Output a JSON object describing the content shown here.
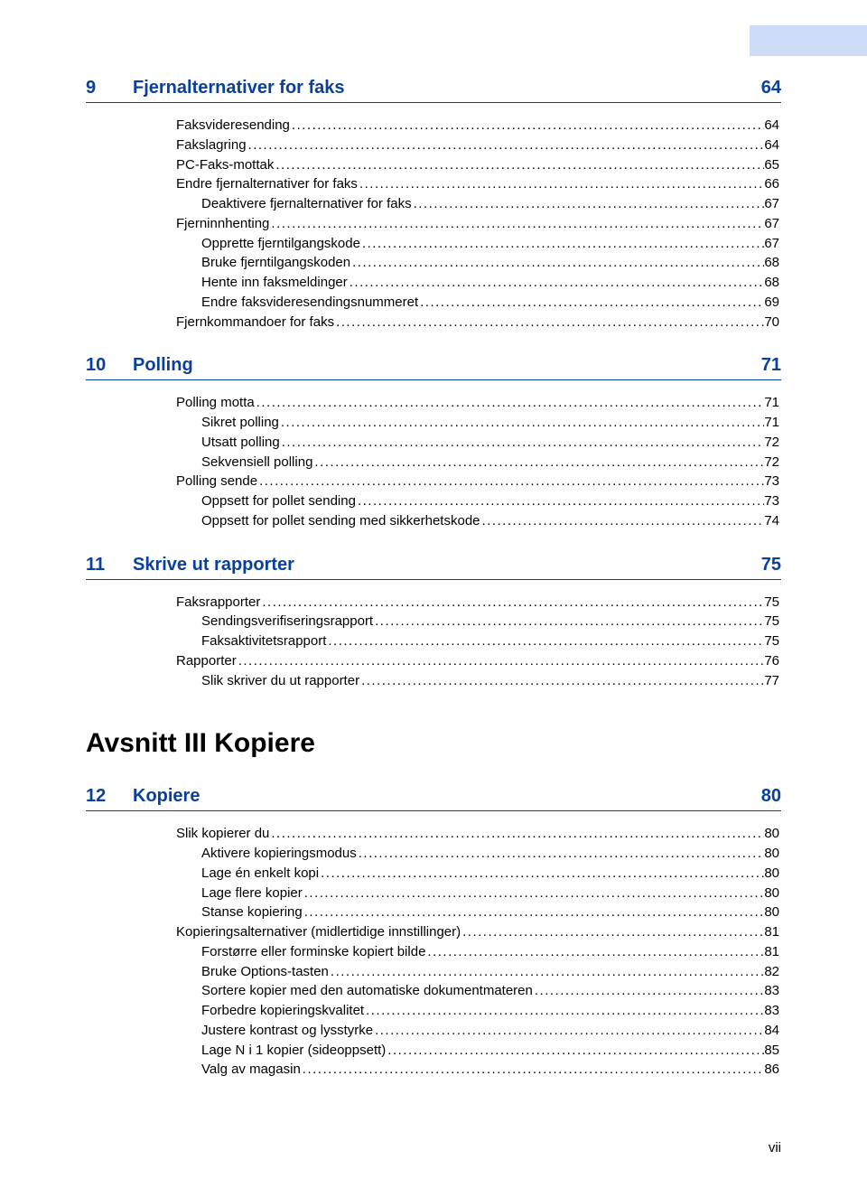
{
  "colors": {
    "heading": "#0a3f9b",
    "band": "#cfdcf7",
    "text": "#000000",
    "background": "#ffffff"
  },
  "sections": [
    {
      "num": "9",
      "title": "Fjernalternativer for faks",
      "page": "64",
      "entries": [
        {
          "label": "Faksvideresending",
          "page": "64",
          "indent": 0
        },
        {
          "label": "Fakslagring",
          "page": "64",
          "indent": 0
        },
        {
          "label": "PC-Faks-mottak",
          "page": "65",
          "indent": 0
        },
        {
          "label": "Endre fjernalternativer for faks",
          "page": "66",
          "indent": 0
        },
        {
          "label": "Deaktivere fjernalternativer for faks",
          "page": "67",
          "indent": 1
        },
        {
          "label": "Fjerninnhenting",
          "page": "67",
          "indent": 0
        },
        {
          "label": "Opprette fjerntilgangskode",
          "page": "67",
          "indent": 1
        },
        {
          "label": "Bruke fjerntilgangskoden",
          "page": "68",
          "indent": 1
        },
        {
          "label": "Hente inn faksmeldinger",
          "page": "68",
          "indent": 1
        },
        {
          "label": "Endre faksvideresendingsnummeret",
          "page": "69",
          "indent": 1
        },
        {
          "label": "Fjernkommandoer for faks",
          "page": "70",
          "indent": 0
        }
      ]
    },
    {
      "num": "10",
      "title": "Polling",
      "page": "71",
      "entries": [
        {
          "label": "Polling motta",
          "page": "71",
          "indent": 0
        },
        {
          "label": "Sikret polling",
          "page": "71",
          "indent": 1
        },
        {
          "label": "Utsatt polling",
          "page": "72",
          "indent": 1
        },
        {
          "label": "Sekvensiell polling",
          "page": "72",
          "indent": 1
        },
        {
          "label": "Polling sende",
          "page": "73",
          "indent": 0
        },
        {
          "label": "Oppsett for pollet sending",
          "page": "73",
          "indent": 1
        },
        {
          "label": "Oppsett for pollet sending med sikkerhetskode",
          "page": "74",
          "indent": 1
        }
      ]
    },
    {
      "num": "11",
      "title": "Skrive ut rapporter",
      "page": "75",
      "entries": [
        {
          "label": "Faksrapporter",
          "page": "75",
          "indent": 0
        },
        {
          "label": "Sendingsverifiseringsrapport",
          "page": "75",
          "indent": 1
        },
        {
          "label": "Faksaktivitetsrapport",
          "page": "75",
          "indent": 1
        },
        {
          "label": "Rapporter",
          "page": "76",
          "indent": 0
        },
        {
          "label": "Slik skriver du ut rapporter",
          "page": "77",
          "indent": 1
        }
      ]
    }
  ],
  "part": {
    "label": "Avsnitt III  Kopiere"
  },
  "sections2": [
    {
      "num": "12",
      "title": "Kopiere",
      "page": "80",
      "entries": [
        {
          "label": "Slik kopierer du",
          "page": "80",
          "indent": 0
        },
        {
          "label": "Aktivere kopieringsmodus",
          "page": "80",
          "indent": 1
        },
        {
          "label": "Lage én enkelt kopi",
          "page": "80",
          "indent": 1
        },
        {
          "label": "Lage flere kopier",
          "page": "80",
          "indent": 1
        },
        {
          "label": "Stanse kopiering",
          "page": "80",
          "indent": 1
        },
        {
          "label": "Kopieringsalternativer (midlertidige innstillinger)",
          "page": "81",
          "indent": 0
        },
        {
          "label": "Forstørre eller forminske kopiert bilde",
          "page": "81",
          "indent": 1
        },
        {
          "label": "Bruke Options-tasten",
          "page": "82",
          "indent": 1
        },
        {
          "label": "Sortere kopier med den automatiske dokumentmateren",
          "page": "83",
          "indent": 1
        },
        {
          "label": "Forbedre kopieringskvalitet",
          "page": "83",
          "indent": 1
        },
        {
          "label": "Justere kontrast og lysstyrke",
          "page": "84",
          "indent": 1
        },
        {
          "label": "Lage N i 1 kopier (sideoppsett)",
          "page": "85",
          "indent": 1
        },
        {
          "label": "Valg av magasin",
          "page": "86",
          "indent": 1
        }
      ]
    }
  ],
  "footer": {
    "page": "vii"
  }
}
